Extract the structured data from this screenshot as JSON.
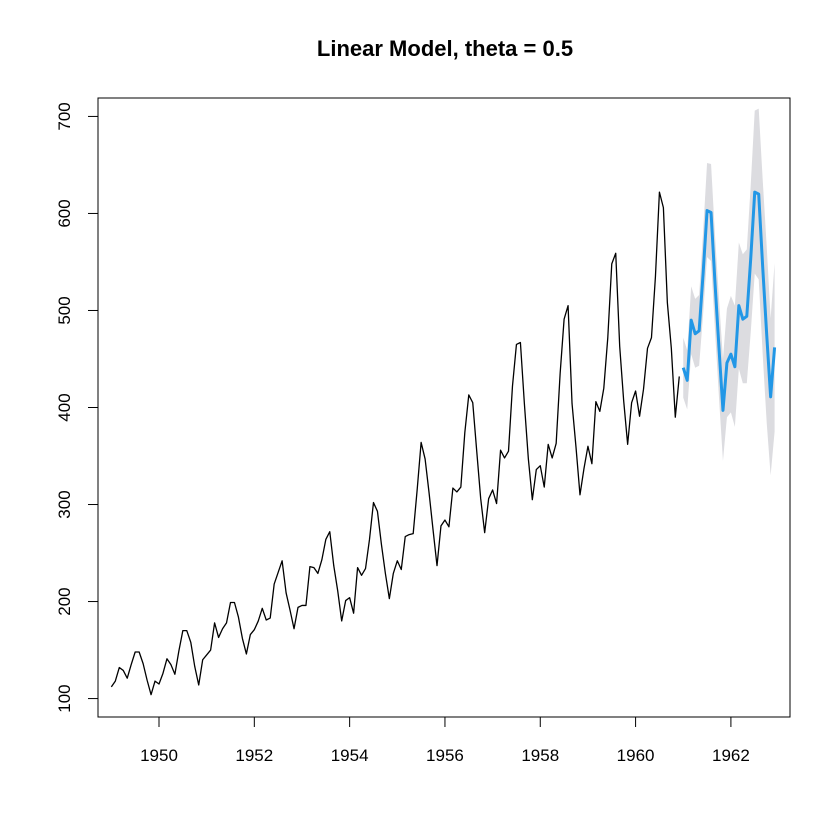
{
  "chart_data": {
    "type": "line",
    "title": "Linear Model, theta = 0.5",
    "xlabel": "",
    "ylabel": "",
    "xlim": [
      1948.72,
      1963.24
    ],
    "ylim": [
      81,
      719
    ],
    "x_ticks": [
      1950,
      1952,
      1954,
      1956,
      1958,
      1960,
      1962
    ],
    "x_tick_labels": [
      "1950",
      "1952",
      "1954",
      "1956",
      "1958",
      "1960",
      "1962"
    ],
    "y_ticks": [
      100,
      200,
      300,
      400,
      500,
      600,
      700
    ],
    "y_tick_labels": [
      "100",
      "200",
      "300",
      "400",
      "500",
      "600",
      "700"
    ],
    "grid": false,
    "legend": "none",
    "colors": {
      "history": "#000000",
      "forecast": "#2297e6",
      "interval": "#dcdce0"
    },
    "history": {
      "start": 1949.0,
      "frequency": 12,
      "values": [
        112,
        118,
        132,
        129,
        121,
        135,
        148,
        148,
        136,
        119,
        104,
        118,
        115,
        126,
        141,
        135,
        125,
        149,
        170,
        170,
        158,
        133,
        114,
        140,
        145,
        150,
        178,
        163,
        172,
        178,
        199,
        199,
        184,
        162,
        146,
        166,
        171,
        180,
        193,
        181,
        183,
        218,
        230,
        242,
        209,
        191,
        172,
        194,
        196,
        196,
        236,
        235,
        229,
        243,
        264,
        272,
        237,
        211,
        180,
        201,
        204,
        188,
        235,
        227,
        234,
        264,
        302,
        293,
        259,
        229,
        203,
        229,
        242,
        233,
        267,
        269,
        270,
        315,
        364,
        347,
        312,
        274,
        237,
        278,
        284,
        277,
        317,
        313,
        318,
        374,
        413,
        405,
        355,
        306,
        271,
        306,
        315,
        301,
        356,
        348,
        355,
        422,
        465,
        467,
        404,
        347,
        305,
        336,
        340,
        318,
        362,
        348,
        363,
        435,
        491,
        505,
        404,
        359,
        310,
        337,
        360,
        342,
        406,
        396,
        420,
        472,
        548,
        559,
        463,
        407,
        362,
        405,
        417,
        391,
        419,
        461,
        472,
        535,
        622,
        606,
        508,
        461,
        390,
        432
      ]
    },
    "forecast": {
      "start": 1961.0,
      "frequency": 12,
      "values": [
        441,
        428,
        490,
        476,
        479,
        538,
        603,
        601,
        528,
        461,
        397,
        446,
        455,
        442,
        505,
        491,
        494,
        554,
        622,
        620,
        545,
        476,
        411,
        462
      ],
      "lower": [
        410,
        398,
        455,
        441,
        443,
        496,
        555,
        551,
        479,
        410,
        345,
        390,
        395,
        380,
        440,
        425,
        425,
        478,
        538,
        532,
        455,
        385,
        330,
        375
      ],
      "upper": [
        472,
        459,
        525,
        512,
        516,
        581,
        652,
        651,
        577,
        512,
        450,
        502,
        515,
        505,
        570,
        558,
        563,
        630,
        706,
        708,
        635,
        567,
        492,
        549
      ]
    }
  }
}
